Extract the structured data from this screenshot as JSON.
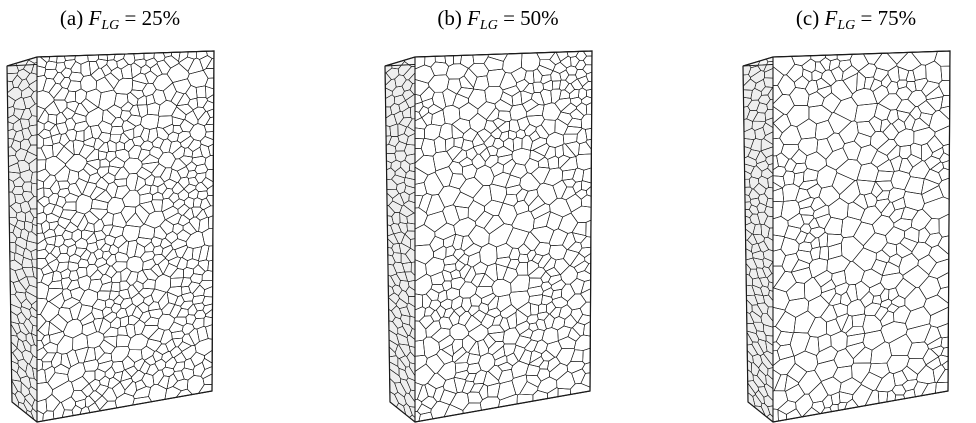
{
  "panels": [
    {
      "label": "(a)",
      "symbol": "F",
      "subscript": "LG",
      "relation": "=",
      "value": "25%",
      "large_grain_fraction": 0.25
    },
    {
      "label": "(b)",
      "symbol": "F",
      "subscript": "LG",
      "relation": "=",
      "value": "50%",
      "large_grain_fraction": 0.5
    },
    {
      "label": "(c)",
      "symbol": "F",
      "subscript": "LG",
      "relation": "=",
      "value": "75%",
      "large_grain_fraction": 0.75
    }
  ],
  "colors": {
    "front_face": "#ffffff",
    "side_face": "#eeeeee",
    "top_face": "#f6f6f6",
    "grain_boundary": "#1a1a1a"
  }
}
